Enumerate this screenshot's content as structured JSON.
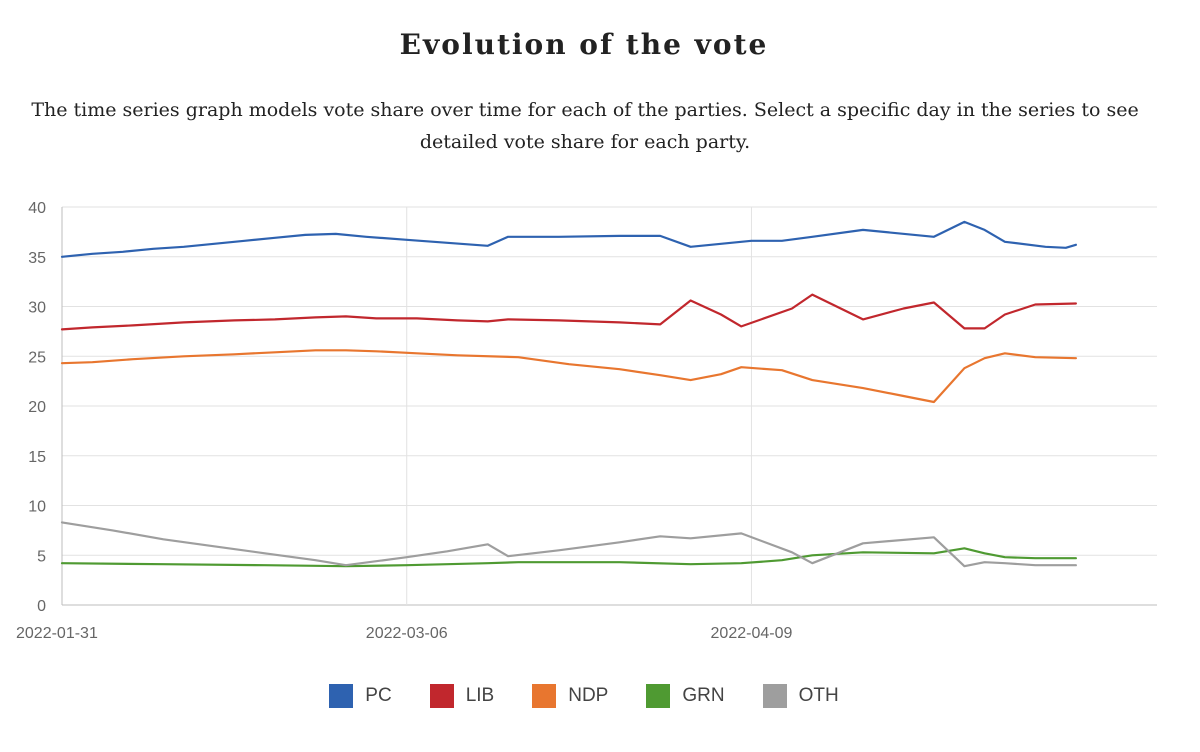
{
  "header": {
    "title": "Evolution of the vote",
    "subtitle": "The time series graph models vote share over time for each of the parties. Select a specific day in the series to see detailed vote share for each party."
  },
  "chart_data": {
    "type": "line",
    "title": "Evolution of the vote",
    "xlabel": "",
    "ylabel": "",
    "xlim": [
      "2022-01-31",
      "2022-05-19"
    ],
    "ylim": [
      0,
      40
    ],
    "yticks": [
      0,
      5,
      10,
      15,
      20,
      25,
      30,
      35,
      40
    ],
    "xticks": [
      "2022-01-31",
      "2022-03-06",
      "2022-04-09"
    ],
    "grid": true,
    "legend_position": "bottom",
    "series": [
      {
        "name": "PC",
        "color": "#2e62b0",
        "points": [
          [
            "2022-01-31",
            35.0
          ],
          [
            "2022-02-03",
            35.3
          ],
          [
            "2022-02-06",
            35.5
          ],
          [
            "2022-02-09",
            35.8
          ],
          [
            "2022-02-12",
            36.0
          ],
          [
            "2022-02-15",
            36.3
          ],
          [
            "2022-02-18",
            36.6
          ],
          [
            "2022-02-21",
            36.9
          ],
          [
            "2022-02-24",
            37.2
          ],
          [
            "2022-02-27",
            37.3
          ],
          [
            "2022-03-02",
            37.0
          ],
          [
            "2022-03-06",
            36.7
          ],
          [
            "2022-03-10",
            36.4
          ],
          [
            "2022-03-14",
            36.1
          ],
          [
            "2022-03-16",
            37.0
          ],
          [
            "2022-03-21",
            37.0
          ],
          [
            "2022-03-27",
            37.1
          ],
          [
            "2022-03-31",
            37.1
          ],
          [
            "2022-04-03",
            36.0
          ],
          [
            "2022-04-06",
            36.3
          ],
          [
            "2022-04-09",
            36.6
          ],
          [
            "2022-04-12",
            36.6
          ],
          [
            "2022-04-15",
            37.0
          ],
          [
            "2022-04-20",
            37.7
          ],
          [
            "2022-04-27",
            37.0
          ],
          [
            "2022-04-30",
            38.5
          ],
          [
            "2022-05-02",
            37.7
          ],
          [
            "2022-05-04",
            36.5
          ],
          [
            "2022-05-08",
            36.0
          ],
          [
            "2022-05-10",
            35.9
          ],
          [
            "2022-05-11",
            36.2
          ]
        ]
      },
      {
        "name": "LIB",
        "color": "#c1272d",
        "points": [
          [
            "2022-01-31",
            27.7
          ],
          [
            "2022-02-03",
            27.9
          ],
          [
            "2022-02-07",
            28.1
          ],
          [
            "2022-02-12",
            28.4
          ],
          [
            "2022-02-17",
            28.6
          ],
          [
            "2022-02-21",
            28.7
          ],
          [
            "2022-02-25",
            28.9
          ],
          [
            "2022-02-28",
            29.0
          ],
          [
            "2022-03-03",
            28.8
          ],
          [
            "2022-03-07",
            28.8
          ],
          [
            "2022-03-11",
            28.6
          ],
          [
            "2022-03-14",
            28.5
          ],
          [
            "2022-03-16",
            28.7
          ],
          [
            "2022-03-21",
            28.6
          ],
          [
            "2022-03-27",
            28.4
          ],
          [
            "2022-03-31",
            28.2
          ],
          [
            "2022-04-03",
            30.6
          ],
          [
            "2022-04-06",
            29.2
          ],
          [
            "2022-04-08",
            28.0
          ],
          [
            "2022-04-13",
            29.8
          ],
          [
            "2022-04-15",
            31.2
          ],
          [
            "2022-04-20",
            28.7
          ],
          [
            "2022-04-24",
            29.8
          ],
          [
            "2022-04-27",
            30.4
          ],
          [
            "2022-04-30",
            27.8
          ],
          [
            "2022-05-02",
            27.8
          ],
          [
            "2022-05-04",
            29.2
          ],
          [
            "2022-05-07",
            30.2
          ],
          [
            "2022-05-11",
            30.3
          ]
        ]
      },
      {
        "name": "NDP",
        "color": "#e8762f",
        "points": [
          [
            "2022-01-31",
            24.3
          ],
          [
            "2022-02-03",
            24.4
          ],
          [
            "2022-02-07",
            24.7
          ],
          [
            "2022-02-12",
            25.0
          ],
          [
            "2022-02-17",
            25.2
          ],
          [
            "2022-02-21",
            25.4
          ],
          [
            "2022-02-25",
            25.6
          ],
          [
            "2022-02-28",
            25.6
          ],
          [
            "2022-03-03",
            25.5
          ],
          [
            "2022-03-07",
            25.3
          ],
          [
            "2022-03-11",
            25.1
          ],
          [
            "2022-03-17",
            24.9
          ],
          [
            "2022-03-22",
            24.2
          ],
          [
            "2022-03-27",
            23.7
          ],
          [
            "2022-03-31",
            23.1
          ],
          [
            "2022-04-03",
            22.6
          ],
          [
            "2022-04-06",
            23.2
          ],
          [
            "2022-04-08",
            23.9
          ],
          [
            "2022-04-12",
            23.6
          ],
          [
            "2022-04-15",
            22.6
          ],
          [
            "2022-04-20",
            21.8
          ],
          [
            "2022-04-24",
            21.0
          ],
          [
            "2022-04-27",
            20.4
          ],
          [
            "2022-04-30",
            23.8
          ],
          [
            "2022-05-02",
            24.8
          ],
          [
            "2022-05-04",
            25.3
          ],
          [
            "2022-05-07",
            24.9
          ],
          [
            "2022-05-11",
            24.8
          ]
        ]
      },
      {
        "name": "GRN",
        "color": "#4f9a32",
        "points": [
          [
            "2022-01-31",
            4.2
          ],
          [
            "2022-02-10",
            4.1
          ],
          [
            "2022-02-20",
            4.0
          ],
          [
            "2022-02-28",
            3.9
          ],
          [
            "2022-03-06",
            4.0
          ],
          [
            "2022-03-14",
            4.2
          ],
          [
            "2022-03-17",
            4.3
          ],
          [
            "2022-03-27",
            4.3
          ],
          [
            "2022-04-03",
            4.1
          ],
          [
            "2022-04-08",
            4.2
          ],
          [
            "2022-04-12",
            4.5
          ],
          [
            "2022-04-15",
            5.0
          ],
          [
            "2022-04-20",
            5.3
          ],
          [
            "2022-04-27",
            5.2
          ],
          [
            "2022-04-30",
            5.7
          ],
          [
            "2022-05-02",
            5.2
          ],
          [
            "2022-05-04",
            4.8
          ],
          [
            "2022-05-07",
            4.7
          ],
          [
            "2022-05-11",
            4.7
          ]
        ]
      },
      {
        "name": "OTH",
        "color": "#9e9e9e",
        "points": [
          [
            "2022-01-31",
            8.3
          ],
          [
            "2022-02-05",
            7.5
          ],
          [
            "2022-02-10",
            6.6
          ],
          [
            "2022-02-15",
            5.9
          ],
          [
            "2022-02-20",
            5.2
          ],
          [
            "2022-02-25",
            4.5
          ],
          [
            "2022-02-28",
            4.0
          ],
          [
            "2022-03-06",
            4.8
          ],
          [
            "2022-03-10",
            5.4
          ],
          [
            "2022-03-14",
            6.1
          ],
          [
            "2022-03-16",
            4.9
          ],
          [
            "2022-03-21",
            5.5
          ],
          [
            "2022-03-27",
            6.3
          ],
          [
            "2022-03-31",
            6.9
          ],
          [
            "2022-04-03",
            6.7
          ],
          [
            "2022-04-08",
            7.2
          ],
          [
            "2022-04-13",
            5.3
          ],
          [
            "2022-04-15",
            4.2
          ],
          [
            "2022-04-20",
            6.2
          ],
          [
            "2022-04-27",
            6.8
          ],
          [
            "2022-04-30",
            3.9
          ],
          [
            "2022-05-02",
            4.3
          ],
          [
            "2022-05-04",
            4.2
          ],
          [
            "2022-05-07",
            4.0
          ],
          [
            "2022-05-11",
            4.0
          ]
        ]
      }
    ]
  }
}
